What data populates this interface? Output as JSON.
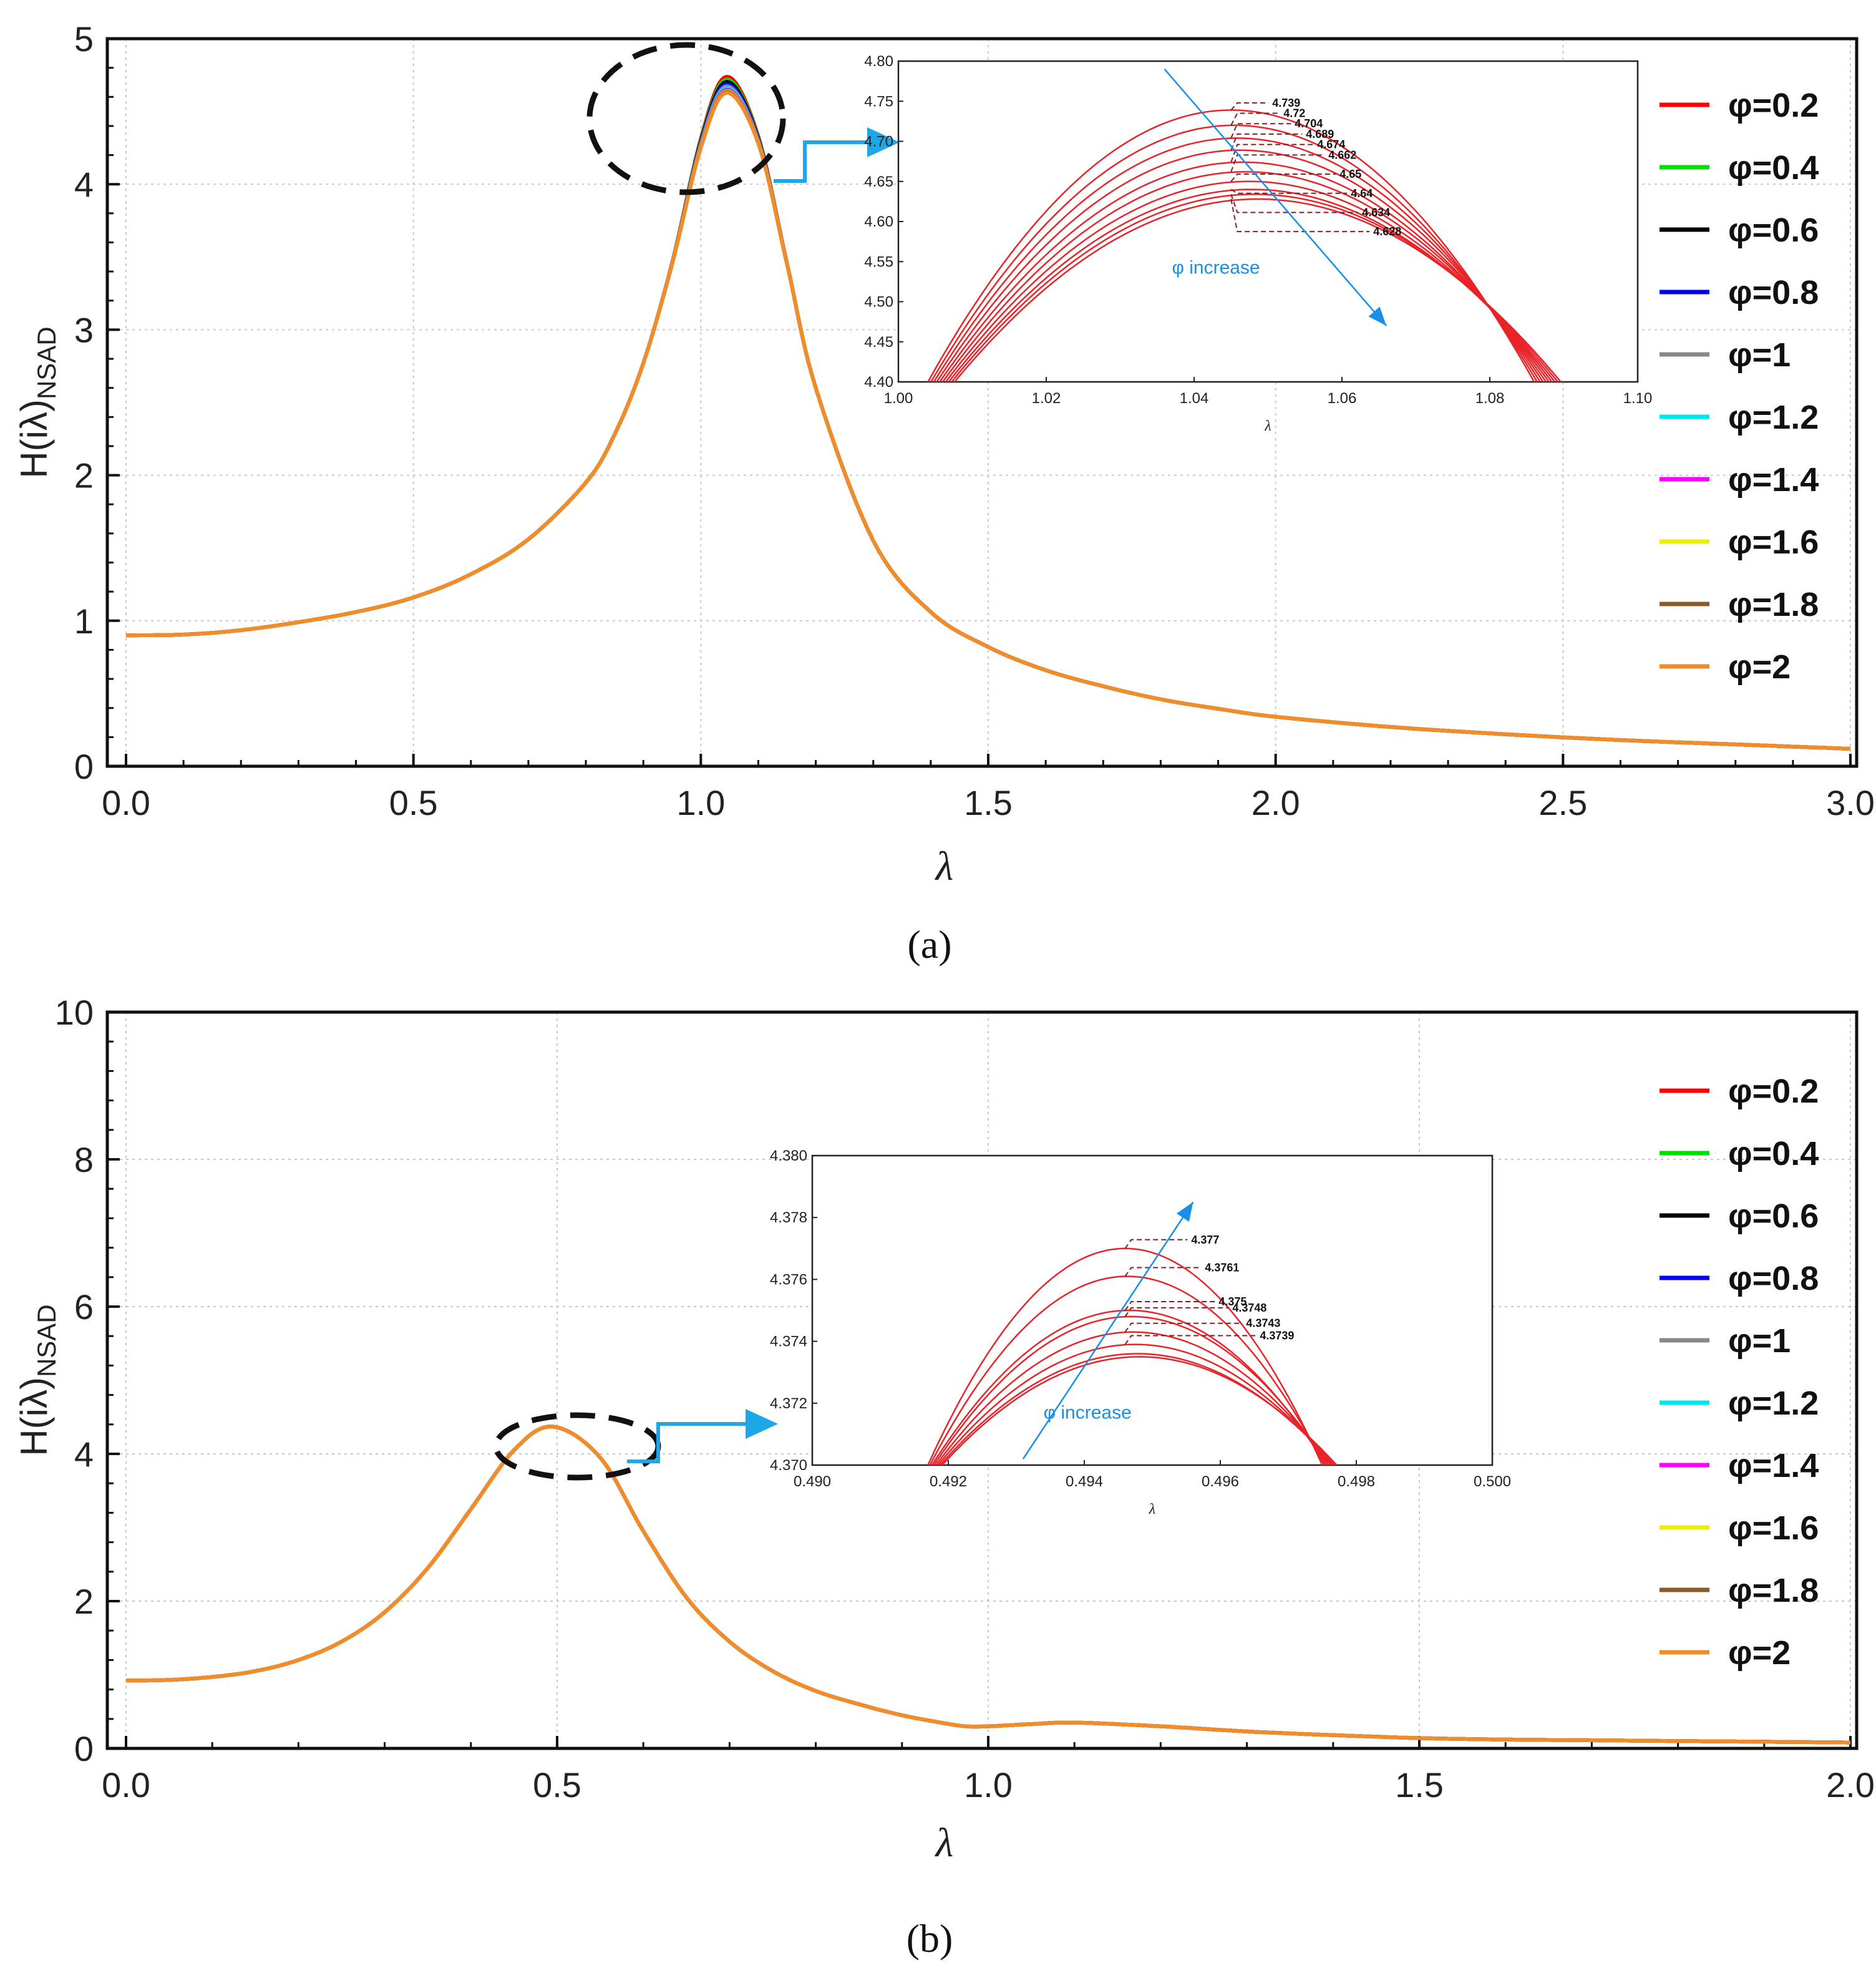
{
  "chart_data": [
    {
      "type": "line",
      "caption": "(a)",
      "xlabel": "λ",
      "ylabel": "H(iλ)",
      "ylabel_sub": "NSAD",
      "xlim": [
        0,
        3
      ],
      "ylim": [
        0,
        5
      ],
      "xticks": [
        "0.0",
        "0.5",
        "1.0",
        "1.5",
        "2.0",
        "2.5",
        "3.0"
      ],
      "yticks": [
        "0",
        "1",
        "2",
        "3",
        "4",
        "5"
      ],
      "grid": true,
      "legend_position": "right",
      "series": [
        {
          "name": "φ=0.2",
          "color": "#ff0000",
          "peak": 4.739
        },
        {
          "name": "φ=0.4",
          "color": "#00e000",
          "peak": 4.72
        },
        {
          "name": "φ=0.6",
          "color": "#000000",
          "peak": 4.704
        },
        {
          "name": "φ=0.8",
          "color": "#0000ff",
          "peak": 4.689
        },
        {
          "name": "φ=1",
          "color": "#888888",
          "peak": 4.674
        },
        {
          "name": "φ=1.2",
          "color": "#00e5ee",
          "peak": 4.662
        },
        {
          "name": "φ=1.4",
          "color": "#ff00ff",
          "peak": 4.65
        },
        {
          "name": "φ=1.6",
          "color": "#eeee00",
          "peak": 4.64
        },
        {
          "name": "φ=1.8",
          "color": "#8b5a2b",
          "peak": 4.634
        },
        {
          "name": "φ=2",
          "color": "#f28c28",
          "peak": 4.628
        }
      ],
      "curve_points": [
        [
          0,
          0.9
        ],
        [
          0.1,
          0.905
        ],
        [
          0.2,
          0.935
        ],
        [
          0.3,
          0.99
        ],
        [
          0.4,
          1.06
        ],
        [
          0.5,
          1.16
        ],
        [
          0.6,
          1.32
        ],
        [
          0.7,
          1.56
        ],
        [
          0.8,
          1.95
        ],
        [
          0.85,
          2.28
        ],
        [
          0.9,
          2.77
        ],
        [
          0.95,
          3.45
        ],
        [
          1.0,
          4.25
        ],
        [
          1.045,
          4.63
        ],
        [
          1.1,
          4.28
        ],
        [
          1.15,
          3.45
        ],
        [
          1.2,
          2.6
        ],
        [
          1.3,
          1.55
        ],
        [
          1.4,
          1.06
        ],
        [
          1.5,
          0.82
        ],
        [
          1.6,
          0.66
        ],
        [
          1.7,
          0.55
        ],
        [
          1.8,
          0.46
        ],
        [
          1.9,
          0.395
        ],
        [
          2.0,
          0.34
        ],
        [
          2.2,
          0.27
        ],
        [
          2.4,
          0.22
        ],
        [
          2.6,
          0.18
        ],
        [
          2.8,
          0.15
        ],
        [
          3.0,
          0.12
        ]
      ],
      "inset": {
        "xlabel": "λ",
        "xlim": [
          1.0,
          1.1
        ],
        "ylim": [
          4.4,
          4.8
        ],
        "xticks": [
          "1.00",
          "1.02",
          "1.04",
          "1.06",
          "1.08",
          "1.10"
        ],
        "yticks": [
          "4.40",
          "4.45",
          "4.50",
          "4.55",
          "4.60",
          "4.65",
          "4.70",
          "4.75",
          "4.80"
        ],
        "peak_x": 1.045,
        "annotation": "φ increase",
        "peak_labels": [
          "4.739",
          "4.72",
          "4.704",
          "4.689",
          "4.674",
          "4.662",
          "4.65",
          "4.64",
          "4.634",
          "4.628"
        ]
      }
    },
    {
      "type": "line",
      "caption": "(b)",
      "xlabel": "λ",
      "ylabel": "H(iλ)",
      "ylabel_sub": "NSAD",
      "xlim": [
        0,
        2
      ],
      "ylim": [
        0,
        10
      ],
      "xticks": [
        "0.0",
        "0.5",
        "1.0",
        "1.5",
        "2.0"
      ],
      "yticks": [
        "0",
        "2",
        "4",
        "6",
        "8",
        "10"
      ],
      "grid": true,
      "legend_position": "right",
      "series": [
        {
          "name": "φ=0.2",
          "color": "#ff0000",
          "peak": 4.377
        },
        {
          "name": "φ=0.4",
          "color": "#00e000",
          "peak": 4.3761
        },
        {
          "name": "φ=0.6",
          "color": "#000000",
          "peak": 4.375
        },
        {
          "name": "φ=0.8",
          "color": "#0000ff",
          "peak": 4.3748
        },
        {
          "name": "φ=1",
          "color": "#888888",
          "peak": 4.3743
        },
        {
          "name": "φ=1.2",
          "color": "#00e5ee",
          "peak": 4.3739
        },
        {
          "name": "φ=1.4",
          "color": "#ff00ff"
        },
        {
          "name": "φ=1.6",
          "color": "#eeee00"
        },
        {
          "name": "φ=1.8",
          "color": "#8b5a2b"
        },
        {
          "name": "φ=2",
          "color": "#f28c28"
        }
      ],
      "curve_points": [
        [
          0,
          0.92
        ],
        [
          0.05,
          0.93
        ],
        [
          0.1,
          0.97
        ],
        [
          0.15,
          1.05
        ],
        [
          0.2,
          1.2
        ],
        [
          0.25,
          1.45
        ],
        [
          0.3,
          1.85
        ],
        [
          0.35,
          2.45
        ],
        [
          0.4,
          3.25
        ],
        [
          0.45,
          4.05
        ],
        [
          0.495,
          4.37
        ],
        [
          0.55,
          3.95
        ],
        [
          0.6,
          2.95
        ],
        [
          0.65,
          2.05
        ],
        [
          0.7,
          1.45
        ],
        [
          0.75,
          1.05
        ],
        [
          0.8,
          0.78
        ],
        [
          0.85,
          0.6
        ],
        [
          0.9,
          0.45
        ],
        [
          0.95,
          0.34
        ],
        [
          0.975,
          0.3
        ],
        [
          1.0,
          0.3
        ],
        [
          1.05,
          0.33
        ],
        [
          1.1,
          0.35
        ],
        [
          1.2,
          0.3
        ],
        [
          1.3,
          0.23
        ],
        [
          1.4,
          0.18
        ],
        [
          1.5,
          0.14
        ],
        [
          1.6,
          0.12
        ],
        [
          1.7,
          0.11
        ],
        [
          1.8,
          0.1
        ],
        [
          1.9,
          0.09
        ],
        [
          2.0,
          0.08
        ]
      ],
      "inset": {
        "xlabel": "λ",
        "xlim": [
          0.49,
          0.5
        ],
        "ylim": [
          4.37,
          4.38
        ],
        "xticks": [
          "0.490",
          "0.492",
          "0.494",
          "0.496",
          "0.498",
          "0.500"
        ],
        "yticks": [
          "4.370",
          "4.372",
          "4.374",
          "4.376",
          "4.378",
          "4.380"
        ],
        "peak_x": 0.4946,
        "annotation": "φ increase",
        "peak_labels": [
          "4.377",
          "4.3761",
          "4.375",
          "4.3748",
          "4.3743",
          "4.3739"
        ]
      }
    }
  ]
}
